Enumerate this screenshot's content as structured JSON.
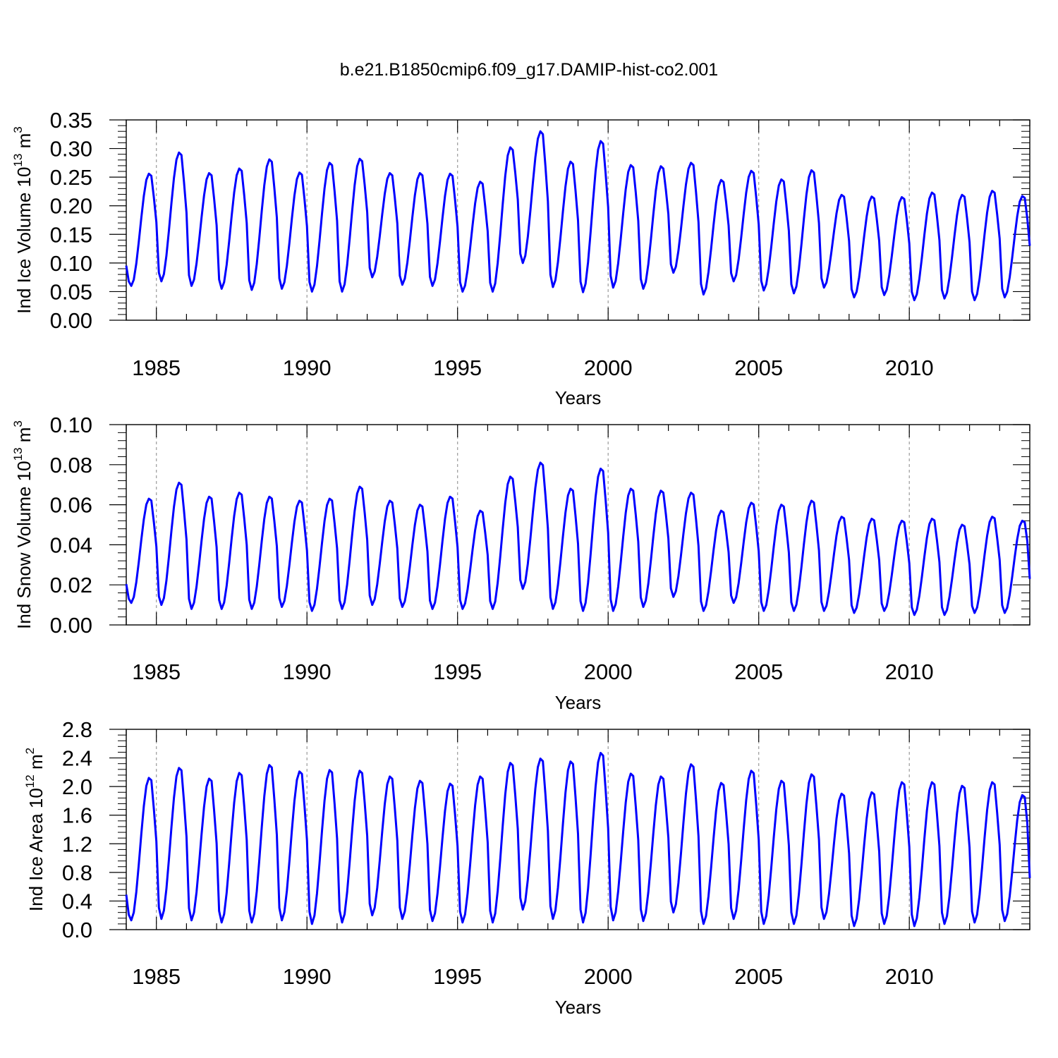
{
  "title": "b.e21.B1850cmip6.f09_g17.DAMIP-hist-co2.001",
  "colors": {
    "series": "#0000ff",
    "axis": "#000000",
    "gridline": "#9a9a9a"
  },
  "chart_data": [
    {
      "type": "line",
      "xlabel": "Years",
      "ylabel": {
        "text": "Ind Ice Volume 10",
        "exponent": "13",
        "unit": "m",
        "unit_exponent": "3"
      },
      "xlim": [
        1984.0,
        2014.0
      ],
      "ylim": [
        0.0,
        0.35
      ],
      "xticks": [
        1985,
        1990,
        1995,
        2000,
        2005,
        2010
      ],
      "yticks": [
        "0.00",
        "0.05",
        "0.10",
        "0.15",
        "0.20",
        "0.25",
        "0.30",
        "0.35"
      ],
      "vertical_gridlines": [
        1985,
        1990,
        1995,
        2000,
        2005,
        2010
      ],
      "series": [
        {
          "name": "Ind Ice Volume",
          "x_start": 1984.0,
          "x_step": 0.0833333,
          "annual_minima": [
            0.06,
            0.068,
            0.06,
            0.055,
            0.053,
            0.055,
            0.05,
            0.05,
            0.075,
            0.062,
            0.06,
            0.05,
            0.05,
            0.1,
            0.058,
            0.049,
            0.057,
            0.055,
            0.083,
            0.045,
            0.068,
            0.052,
            0.047,
            0.057,
            0.04,
            0.044,
            0.035,
            0.038,
            0.035,
            0.04
          ],
          "annual_maxima": [
            0.256,
            0.293,
            0.257,
            0.265,
            0.281,
            0.258,
            0.275,
            0.282,
            0.257,
            0.257,
            0.256,
            0.242,
            0.302,
            0.33,
            0.277,
            0.313,
            0.271,
            0.269,
            0.275,
            0.245,
            0.261,
            0.246,
            0.262,
            0.219,
            0.216,
            0.215,
            0.223,
            0.219,
            0.226,
            0.217
          ],
          "end_value": 0.13
        }
      ]
    },
    {
      "type": "line",
      "xlabel": "Years",
      "ylabel": {
        "text": "Ind Snow Volume 10",
        "exponent": "13",
        "unit": "m",
        "unit_exponent": "3"
      },
      "xlim": [
        1984.0,
        2014.0
      ],
      "ylim": [
        0.0,
        0.1
      ],
      "xticks": [
        1985,
        1990,
        1995,
        2000,
        2005,
        2010
      ],
      "yticks": [
        "0.00",
        "0.02",
        "0.04",
        "0.06",
        "0.08",
        "0.10"
      ],
      "vertical_gridlines": [
        1985,
        1990,
        1995,
        2000,
        2005,
        2010
      ],
      "series": [
        {
          "name": "Ind Snow Volume",
          "x_start": 1984.0,
          "x_step": 0.0833333,
          "annual_minima": [
            0.011,
            0.01,
            0.008,
            0.008,
            0.008,
            0.009,
            0.007,
            0.008,
            0.01,
            0.009,
            0.008,
            0.008,
            0.008,
            0.018,
            0.008,
            0.007,
            0.007,
            0.009,
            0.014,
            0.007,
            0.011,
            0.007,
            0.007,
            0.007,
            0.006,
            0.007,
            0.005,
            0.005,
            0.006,
            0.006
          ],
          "annual_maxima": [
            0.063,
            0.071,
            0.064,
            0.066,
            0.064,
            0.062,
            0.063,
            0.069,
            0.062,
            0.06,
            0.064,
            0.057,
            0.074,
            0.081,
            0.068,
            0.078,
            0.068,
            0.067,
            0.066,
            0.057,
            0.061,
            0.06,
            0.062,
            0.054,
            0.053,
            0.052,
            0.053,
            0.05,
            0.054,
            0.052
          ],
          "end_value": 0.023
        }
      ]
    },
    {
      "type": "line",
      "xlabel": "Years",
      "ylabel": {
        "text": "Ind Ice Area 10",
        "exponent": "12",
        "unit": "m",
        "unit_exponent": "2"
      },
      "xlim": [
        1984.0,
        2014.0
      ],
      "ylim": [
        0.0,
        2.8
      ],
      "xticks": [
        1985,
        1990,
        1995,
        2000,
        2005,
        2010
      ],
      "yticks": [
        "0.0",
        "0.4",
        "0.8",
        "1.2",
        "1.6",
        "2.0",
        "2.4",
        "2.8"
      ],
      "vertical_gridlines": [
        1985,
        1990,
        1995,
        2000,
        2005,
        2010
      ],
      "series": [
        {
          "name": "Ind Ice Area",
          "x_start": 1984.0,
          "x_step": 0.0833333,
          "annual_minima": [
            0.13,
            0.15,
            0.13,
            0.1,
            0.1,
            0.13,
            0.08,
            0.1,
            0.2,
            0.15,
            0.12,
            0.1,
            0.1,
            0.28,
            0.15,
            0.1,
            0.13,
            0.12,
            0.24,
            0.08,
            0.15,
            0.08,
            0.08,
            0.15,
            0.05,
            0.08,
            0.05,
            0.08,
            0.1,
            0.12
          ],
          "annual_maxima": [
            2.12,
            2.26,
            2.11,
            2.19,
            2.3,
            2.21,
            2.23,
            2.22,
            2.14,
            2.08,
            2.04,
            2.14,
            2.33,
            2.39,
            2.35,
            2.47,
            2.18,
            2.14,
            2.31,
            2.05,
            2.22,
            2.08,
            2.17,
            1.9,
            1.92,
            2.06,
            2.06,
            2.01,
            2.06,
            1.88
          ],
          "end_value": 0.72
        }
      ]
    }
  ]
}
